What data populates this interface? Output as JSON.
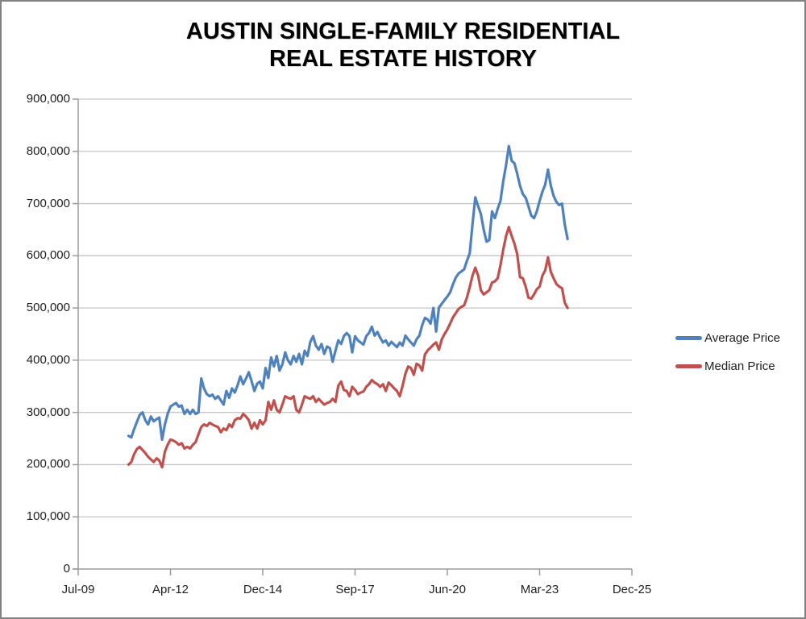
{
  "title": {
    "line1": "AUSTIN SINGLE-FAMILY RESIDENTIAL",
    "line2": "REAL ESTATE HISTORY"
  },
  "legend": [
    {
      "label": "Average Price",
      "color": "#4F81BD"
    },
    {
      "label": "Median Price",
      "color": "#C0504D"
    }
  ],
  "colors": {
    "average_line": "#4F81BD",
    "median_line": "#C0504D",
    "gridline": "#C6C6C6",
    "axis": "#9C9C9C",
    "text": "#1f1f1f",
    "background": "#FFFFFF",
    "frame_border": "#818181"
  },
  "chart_data": {
    "type": "line",
    "title": "AUSTIN SINGLE-FAMILY RESIDENTIAL REAL ESTATE HISTORY",
    "xlabel": "",
    "ylabel": "",
    "ylim": [
      0,
      900000
    ],
    "y_step": 100000,
    "grid": true,
    "legend_position": "right",
    "frequency": "monthly",
    "x_axis_start": "Jul-09",
    "x_axis_end": "Dec-25",
    "data_start": "Jan-11",
    "data_end": "Feb-24",
    "x_offset_months": 18,
    "x_total_months": 198,
    "x_tick_labels": [
      "Jul-09",
      "Apr-12",
      "Dec-14",
      "Sep-17",
      "Jun-20",
      "Mar-23",
      "Dec-25"
    ],
    "y_tick_labels": [
      "0",
      "100,000",
      "200,000",
      "300,000",
      "400,000",
      "500,000",
      "600,000",
      "700,000",
      "800,000",
      "900,000"
    ],
    "series": [
      {
        "name": "Average Price",
        "color": "#4F81BD",
        "start_month": "Jan-11",
        "values": [
          255000,
          252000,
          268000,
          282000,
          295000,
          300000,
          285000,
          277000,
          292000,
          283000,
          287000,
          290000,
          248000,
          277000,
          297000,
          311000,
          315000,
          318000,
          311000,
          313000,
          297000,
          305000,
          297000,
          305000,
          297000,
          300000,
          365000,
          346000,
          335000,
          331000,
          334000,
          326000,
          331000,
          323000,
          315000,
          341000,
          328000,
          346000,
          338000,
          352000,
          369000,
          354000,
          365000,
          377000,
          360000,
          341000,
          355000,
          359000,
          346000,
          385000,
          366000,
          405000,
          388000,
          408000,
          380000,
          392000,
          415000,
          400000,
          392000,
          408000,
          397000,
          412000,
          392000,
          418000,
          408000,
          435000,
          446000,
          428000,
          420000,
          431000,
          412000,
          426000,
          423000,
          397000,
          418000,
          438000,
          431000,
          446000,
          452000,
          446000,
          415000,
          446000,
          438000,
          434000,
          430000,
          446000,
          452000,
          464000,
          447000,
          454000,
          443000,
          434000,
          438000,
          428000,
          435000,
          430000,
          425000,
          434000,
          428000,
          447000,
          440000,
          434000,
          428000,
          440000,
          447000,
          467000,
          481000,
          478000,
          470000,
          500000,
          455000,
          501000,
          508000,
          515000,
          522000,
          530000,
          545000,
          558000,
          566000,
          570000,
          574000,
          590000,
          605000,
          660000,
          712000,
          695000,
          680000,
          650000,
          627000,
          630000,
          685000,
          672000,
          690000,
          705000,
          743000,
          774000,
          810000,
          782000,
          777000,
          757000,
          734000,
          718000,
          711000,
          695000,
          677000,
          672000,
          685000,
          705000,
          723000,
          736000,
          765000,
          734000,
          715000,
          703000,
          697000,
          700000,
          660000,
          632000
        ]
      },
      {
        "name": "Median Price",
        "color": "#C0504D",
        "start_month": "Jan-11",
        "values": [
          200000,
          205000,
          220000,
          230000,
          234000,
          228000,
          222000,
          215000,
          210000,
          205000,
          212000,
          208000,
          195000,
          225000,
          238000,
          248000,
          246000,
          243000,
          238000,
          241000,
          231000,
          234000,
          231000,
          238000,
          243000,
          258000,
          272000,
          277000,
          274000,
          280000,
          277000,
          274000,
          272000,
          262000,
          269000,
          266000,
          277000,
          272000,
          285000,
          289000,
          288000,
          297000,
          292000,
          285000,
          269000,
          280000,
          269000,
          285000,
          277000,
          285000,
          320000,
          305000,
          323000,
          305000,
          300000,
          315000,
          331000,
          328000,
          326000,
          331000,
          305000,
          300000,
          315000,
          331000,
          328000,
          326000,
          331000,
          320000,
          326000,
          320000,
          315000,
          318000,
          320000,
          326000,
          320000,
          351000,
          359000,
          343000,
          341000,
          331000,
          349000,
          343000,
          335000,
          338000,
          340000,
          349000,
          354000,
          362000,
          357000,
          354000,
          349000,
          354000,
          341000,
          357000,
          352000,
          346000,
          341000,
          331000,
          351000,
          374000,
          388000,
          385000,
          372000,
          393000,
          390000,
          380000,
          411000,
          419000,
          424000,
          430000,
          434000,
          420000,
          440000,
          450000,
          459000,
          470000,
          482000,
          490000,
          498000,
          502000,
          505000,
          520000,
          540000,
          562000,
          577000,
          562000,
          534000,
          526000,
          530000,
          534000,
          549000,
          551000,
          557000,
          582000,
          612000,
          638000,
          655000,
          638000,
          623000,
          603000,
          559000,
          557000,
          541000,
          520000,
          518000,
          526000,
          536000,
          541000,
          562000,
          572000,
          597000,
          569000,
          557000,
          546000,
          541000,
          538000,
          510000,
          500000
        ]
      }
    ]
  }
}
